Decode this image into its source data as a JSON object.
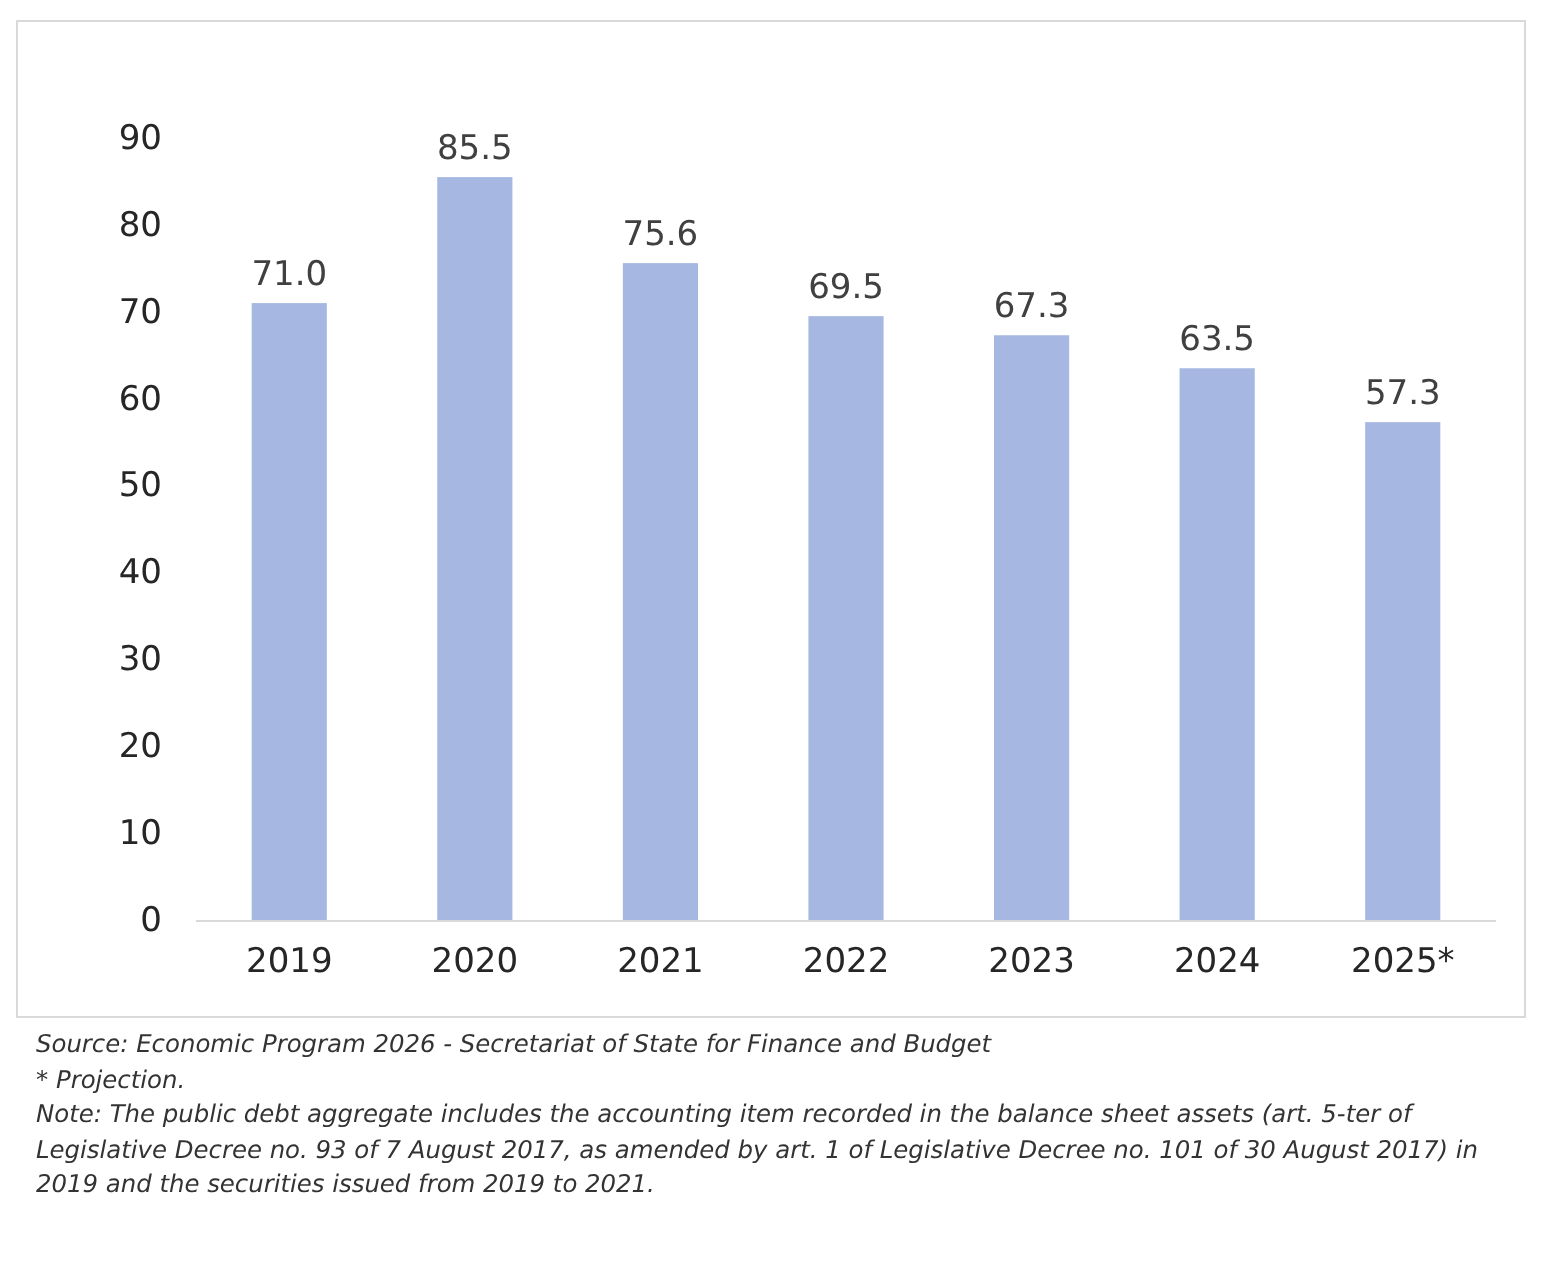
{
  "chart_data": {
    "type": "bar",
    "categories": [
      "2019",
      "2020",
      "2021",
      "2022",
      "2023",
      "2024",
      "2025*"
    ],
    "values": [
      71.0,
      85.5,
      75.6,
      69.5,
      67.3,
      63.5,
      57.3
    ],
    "value_labels": [
      "71.0",
      "85.5",
      "75.6",
      "69.5",
      "67.3",
      "63.5",
      "57.3"
    ],
    "color": "#a6b8e2",
    "ylim": [
      0,
      90
    ],
    "yticks": [
      0,
      10,
      20,
      30,
      40,
      50,
      60,
      70,
      80,
      90
    ],
    "grid": false,
    "annotations": [
      "Source: Economic Program 2026 - Secretariat of State for Finance and Budget",
      "* Projection.",
      "Note: The public debt aggregate includes the accounting item recorded in the balance sheet assets (art. 5-ter of Legislative Decree no. 93 of 7 August 2017, as amended by art. 1 of Legislative Decree no. 101 of 30 August 2017) in 2019 and the securities issued from 2019 to 2021."
    ]
  }
}
